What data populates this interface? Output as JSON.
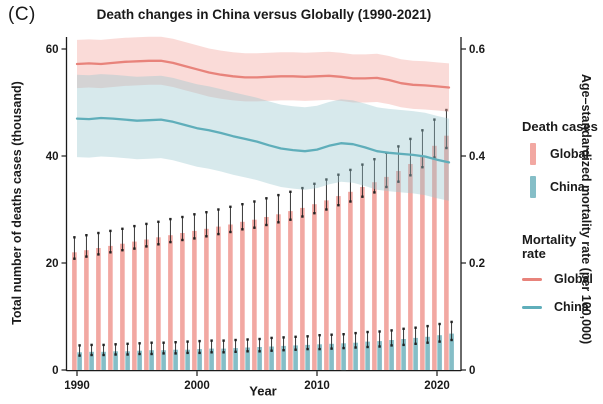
{
  "panel_label": "(C)",
  "title": "Death changes in China versus Globally (1990-2021)",
  "axes": {
    "x": {
      "label": "Year",
      "ticks": [
        "1990",
        "2000",
        "2010",
        "2020"
      ]
    },
    "left": {
      "label": "Total number of deaths cases (thousand)",
      "ticks": [
        "0",
        "20",
        "40",
        "60"
      ]
    },
    "right": {
      "label": "Age–standardized mortality rate (per 100,000)",
      "ticks": [
        "0",
        "0.2",
        "0.4",
        "0.6"
      ]
    }
  },
  "legend": {
    "bars_title": "Death cases",
    "lines_title": "Mortality rate",
    "bar_items": [
      {
        "label": "Global",
        "color": "#F2A8A2"
      },
      {
        "label": "China",
        "color": "#85BEC7"
      }
    ],
    "line_items": [
      {
        "label": "Global",
        "color": "#E8837B"
      },
      {
        "label": "China",
        "color": "#5FAEBA"
      }
    ]
  },
  "colors": {
    "axis": "#1a1a1a",
    "error_bar": "#222222",
    "global_bar": "#F2A8A2",
    "china_bar": "#85BEC7",
    "global_line": "#E8837B",
    "china_line": "#5FAEBA",
    "global_band": "#F4A9A2",
    "china_band": "#96C5CC"
  },
  "chart_data": {
    "type": "bar+line",
    "note": "Dual-axis combo: dodged bars with 95% UI error bars on left axis (deaths, thousands); lines with confidence ribbons on right axis (age-standardized mortality rate per 100,000).",
    "title": "Death changes in China versus Globally (1990-2021)",
    "xlabel": "Year",
    "ylabel_left": "Total number of deaths cases (thousand)",
    "ylabel_right": "Age–standardized mortality rate (per 100,000)",
    "xlim": [
      1989.2,
      2022
    ],
    "ylim_left": [
      0,
      62
    ],
    "ylim_right": [
      0,
      0.62
    ],
    "grid": false,
    "legend_position": "right",
    "x": [
      1990,
      1991,
      1992,
      1993,
      1994,
      1995,
      1996,
      1997,
      1998,
      1999,
      2000,
      2001,
      2002,
      2003,
      2004,
      2005,
      2006,
      2007,
      2008,
      2009,
      2010,
      2011,
      2012,
      2013,
      2014,
      2015,
      2016,
      2017,
      2018,
      2019,
      2020,
      2021
    ],
    "series": [
      {
        "name": "Global death cases",
        "type": "bar",
        "axis": "left",
        "color": "#F2A8A2",
        "values": [
          22.0,
          22.4,
          22.8,
          23.2,
          23.6,
          24.0,
          24.4,
          24.8,
          25.2,
          25.6,
          26.0,
          26.4,
          26.8,
          27.2,
          27.7,
          28.1,
          28.6,
          29.1,
          29.7,
          30.3,
          31.0,
          31.7,
          32.5,
          33.3,
          34.2,
          35.1,
          36.1,
          37.2,
          38.5,
          40.0,
          41.9,
          43.8
        ],
        "ci_low": [
          20.8,
          21.2,
          21.6,
          22.0,
          22.4,
          22.7,
          23.1,
          23.5,
          23.9,
          24.3,
          24.6,
          25.0,
          25.4,
          25.8,
          26.3,
          26.6,
          27.1,
          27.6,
          28.1,
          28.7,
          29.3,
          30.0,
          30.8,
          31.5,
          32.4,
          33.2,
          34.2,
          35.2,
          36.4,
          37.9,
          39.7,
          41.5
        ],
        "ci_high": [
          24.8,
          25.2,
          25.6,
          26.0,
          26.4,
          26.9,
          27.3,
          27.7,
          28.2,
          28.6,
          29.1,
          29.5,
          30.0,
          30.5,
          31.0,
          31.5,
          32.1,
          32.7,
          33.3,
          34.0,
          34.8,
          35.6,
          36.5,
          37.4,
          38.4,
          39.4,
          40.6,
          41.8,
          43.2,
          44.8,
          46.8,
          48.6
        ]
      },
      {
        "name": "China death cases",
        "type": "bar",
        "axis": "left",
        "color": "#85BEC7",
        "values": [
          3.3,
          3.4,
          3.4,
          3.5,
          3.5,
          3.6,
          3.7,
          3.7,
          3.8,
          3.8,
          3.9,
          4.0,
          4.0,
          4.1,
          4.2,
          4.3,
          4.4,
          4.5,
          4.6,
          4.7,
          4.8,
          4.9,
          5.0,
          5.1,
          5.3,
          5.4,
          5.6,
          5.8,
          6.0,
          6.2,
          6.5,
          6.8
        ],
        "ci_low": [
          2.7,
          2.8,
          2.8,
          2.9,
          2.9,
          3.0,
          3.0,
          3.1,
          3.1,
          3.2,
          3.2,
          3.3,
          3.3,
          3.4,
          3.5,
          3.5,
          3.6,
          3.7,
          3.8,
          3.9,
          3.9,
          4.0,
          4.1,
          4.2,
          4.3,
          4.4,
          4.6,
          4.7,
          4.9,
          5.1,
          5.3,
          5.6
        ],
        "ci_high": [
          4.6,
          4.7,
          4.7,
          4.8,
          4.9,
          5.0,
          5.1,
          5.1,
          5.2,
          5.3,
          5.4,
          5.5,
          5.5,
          5.6,
          5.7,
          5.8,
          6.0,
          6.1,
          6.2,
          6.3,
          6.5,
          6.6,
          6.7,
          6.9,
          7.1,
          7.2,
          7.4,
          7.7,
          7.9,
          8.2,
          8.6,
          9.0
        ]
      },
      {
        "name": "Global mortality rate",
        "type": "line",
        "axis": "right",
        "color": "#E8837B",
        "band_color": "#F4A9A2",
        "band_opacity": 0.42,
        "values": [
          0.572,
          0.573,
          0.572,
          0.574,
          0.576,
          0.577,
          0.578,
          0.578,
          0.574,
          0.568,
          0.562,
          0.556,
          0.552,
          0.549,
          0.547,
          0.547,
          0.548,
          0.549,
          0.549,
          0.548,
          0.549,
          0.55,
          0.548,
          0.545,
          0.545,
          0.546,
          0.542,
          0.536,
          0.533,
          0.532,
          0.53,
          0.528
        ],
        "ci_low": [
          0.527,
          0.528,
          0.527,
          0.529,
          0.531,
          0.532,
          0.533,
          0.533,
          0.529,
          0.523,
          0.517,
          0.511,
          0.507,
          0.504,
          0.502,
          0.502,
          0.503,
          0.504,
          0.504,
          0.503,
          0.504,
          0.505,
          0.503,
          0.5,
          0.5,
          0.501,
          0.497,
          0.491,
          0.488,
          0.487,
          0.485,
          0.483
        ],
        "ci_high": [
          0.617,
          0.618,
          0.617,
          0.619,
          0.621,
          0.622,
          0.623,
          0.623,
          0.619,
          0.613,
          0.607,
          0.601,
          0.597,
          0.594,
          0.592,
          0.592,
          0.593,
          0.594,
          0.594,
          0.593,
          0.594,
          0.595,
          0.593,
          0.59,
          0.59,
          0.591,
          0.587,
          0.581,
          0.578,
          0.577,
          0.575,
          0.573
        ]
      },
      {
        "name": "China mortality rate",
        "type": "line",
        "axis": "right",
        "color": "#5FAEBA",
        "band_color": "#96C5CC",
        "band_opacity": 0.38,
        "values": [
          0.47,
          0.469,
          0.471,
          0.47,
          0.468,
          0.466,
          0.467,
          0.468,
          0.464,
          0.458,
          0.452,
          0.448,
          0.443,
          0.437,
          0.432,
          0.427,
          0.42,
          0.414,
          0.411,
          0.409,
          0.412,
          0.419,
          0.424,
          0.422,
          0.416,
          0.409,
          0.406,
          0.404,
          0.402,
          0.399,
          0.393,
          0.388
        ],
        "ci_low": [
          0.398,
          0.397,
          0.399,
          0.398,
          0.396,
          0.394,
          0.395,
          0.396,
          0.392,
          0.386,
          0.38,
          0.376,
          0.371,
          0.365,
          0.36,
          0.355,
          0.348,
          0.342,
          0.339,
          0.337,
          0.34,
          0.347,
          0.352,
          0.35,
          0.344,
          0.337,
          0.334,
          0.332,
          0.33,
          0.327,
          0.321,
          0.316
        ],
        "ci_high": [
          0.552,
          0.551,
          0.553,
          0.552,
          0.55,
          0.548,
          0.549,
          0.55,
          0.546,
          0.54,
          0.534,
          0.53,
          0.525,
          0.519,
          0.514,
          0.509,
          0.502,
          0.496,
          0.493,
          0.491,
          0.494,
          0.501,
          0.506,
          0.504,
          0.498,
          0.491,
          0.488,
          0.486,
          0.484,
          0.481,
          0.475,
          0.47
        ]
      }
    ]
  }
}
